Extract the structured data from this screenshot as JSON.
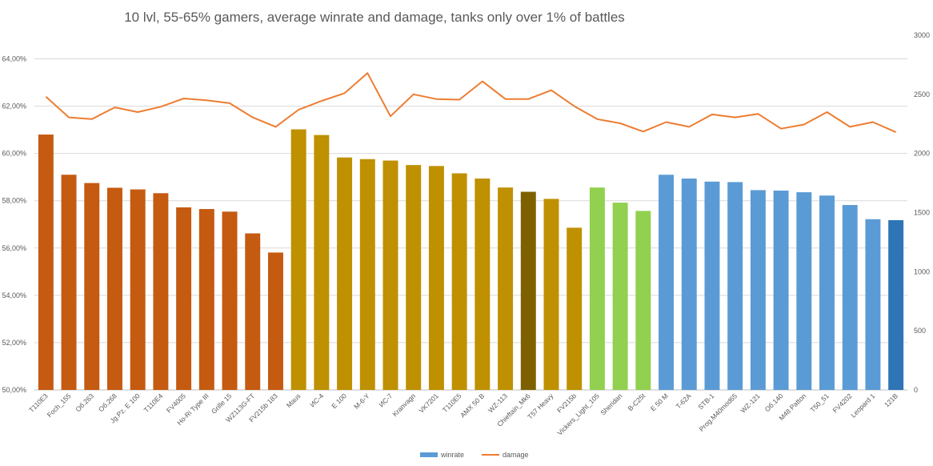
{
  "chart_data": {
    "type": "bar",
    "title": "10 lvl, 55-65% gamers, average winrate and damage, tanks only over 1% of battles",
    "xlabel": "",
    "ylabel": "",
    "ylim": [
      0.5,
      0.65
    ],
    "y2lim": [
      0,
      3000
    ],
    "y_ticks": [
      "50,00%",
      "52,00%",
      "54,00%",
      "56,00%",
      "58,00%",
      "60,00%",
      "62,00%",
      "64,00%"
    ],
    "y_tick_values": [
      0.5,
      0.52,
      0.54,
      0.56,
      0.58,
      0.6,
      0.62,
      0.64
    ],
    "y2_ticks": [
      "0",
      "500",
      "1000",
      "1500",
      "2000",
      "2500",
      "3000"
    ],
    "y2_tick_values": [
      0,
      500,
      1000,
      1500,
      2000,
      2500,
      3000
    ],
    "grid": true,
    "legend_position": "bottom",
    "categories": [
      "T110E3",
      "Foch_155",
      "Об.263",
      "Об.268",
      "Jg.Pz. E 100",
      "T110E4",
      "FV4005",
      "Ho-Ri Type III",
      "Grille 15",
      "WZ113G-FT",
      "FV215b 183",
      "Maus",
      "ИС-4",
      "E 100",
      "M-6-Y",
      "ИС-7",
      "Kranvagn",
      "VK7201",
      "T110E5",
      "AMX 50 B",
      "WZ-113",
      "Chieftain_Mk6",
      "T57 Heavy",
      "FV215b",
      "Vickers_Light_105",
      "Sheridan",
      "B-C25t",
      "E 50 M",
      "T-62A",
      "STB-1",
      "Prog.M40mod65",
      "WZ-121",
      "Об.140",
      "M48 Patton",
      "T50_51",
      "FV4202",
      "Leopard 1",
      "121B"
    ],
    "bar_colors": [
      "#c55a11",
      "#c55a11",
      "#c55a11",
      "#c55a11",
      "#c55a11",
      "#c55a11",
      "#c55a11",
      "#c55a11",
      "#c55a11",
      "#c55a11",
      "#c55a11",
      "#bf9000",
      "#bf9000",
      "#bf9000",
      "#bf9000",
      "#bf9000",
      "#bf9000",
      "#bf9000",
      "#bf9000",
      "#bf9000",
      "#bf9000",
      "#7f6000",
      "#bf9000",
      "#bf9000",
      "#92d050",
      "#92d050",
      "#92d050",
      "#5b9bd5",
      "#5b9bd5",
      "#5b9bd5",
      "#5b9bd5",
      "#5b9bd5",
      "#5b9bd5",
      "#5b9bd5",
      "#5b9bd5",
      "#5b9bd5",
      "#5b9bd5",
      "#2e75b6"
    ],
    "line_color": "#ed7d31",
    "series": [
      {
        "name": "winrate",
        "type": "bar",
        "axis": "left",
        "color": "#5b9bd5",
        "values": [
          0.608,
          0.591,
          0.5875,
          0.5855,
          0.5848,
          0.5832,
          0.5772,
          0.5765,
          0.5754,
          0.5662,
          0.5581,
          0.6102,
          0.6078,
          0.5983,
          0.5976,
          0.597,
          0.5951,
          0.5947,
          0.5916,
          0.5894,
          0.5856,
          0.5838,
          0.5808,
          0.5686,
          0.5856,
          0.5792,
          0.5757,
          0.591,
          0.5894,
          0.5881,
          0.5879,
          0.5845,
          0.5843,
          0.5836,
          0.5822,
          0.5782,
          0.5722,
          0.5718
        ]
      },
      {
        "name": "damage",
        "type": "line",
        "axis": "right",
        "color": "#ed7d31",
        "values": [
          2480,
          2305,
          2290,
          2390,
          2350,
          2395,
          2465,
          2450,
          2425,
          2305,
          2225,
          2370,
          2445,
          2510,
          2680,
          2315,
          2500,
          2460,
          2455,
          2610,
          2460,
          2460,
          2535,
          2400,
          2290,
          2255,
          2185,
          2265,
          2225,
          2330,
          2305,
          2335,
          2210,
          2245,
          2350,
          2225,
          2265,
          2180
        ]
      }
    ]
  }
}
